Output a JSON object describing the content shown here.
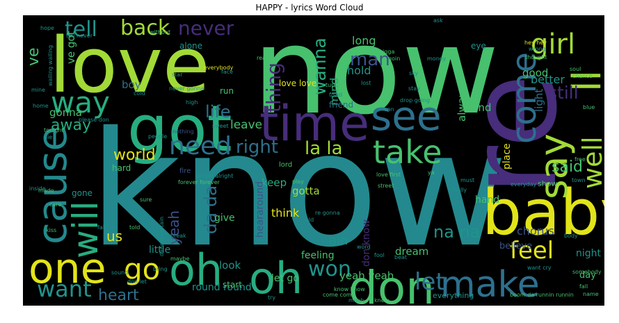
{
  "chart_data": {
    "type": "wordcloud",
    "title": "HAPPY - lyrics Word Cloud",
    "background": "#000000",
    "palette": {
      "yellow": "#e2e419",
      "lime": "#a2da37",
      "green": "#47c16e",
      "sea": "#27ad81",
      "teal": "#1f948c",
      "cyan": "#23898e",
      "blue": "#2d708e",
      "indigo": "#3b528b",
      "purple": "#472d7b",
      "violet": "#440154"
    },
    "words": [
      {
        "text": "know",
        "color": "cyan"
      },
      {
        "text": "now",
        "color": "green"
      },
      {
        "text": "re",
        "color": "purple"
      },
      {
        "text": "love",
        "color": "lime"
      },
      {
        "text": "got",
        "color": "sea"
      },
      {
        "text": "time",
        "color": "purple"
      },
      {
        "text": "baby",
        "color": "yellow"
      },
      {
        "text": "cause",
        "color": "cyan"
      },
      {
        "text": "one",
        "color": "yellow"
      },
      {
        "text": "oh",
        "color": "sea"
      },
      {
        "text": "oh",
        "color": "sea"
      },
      {
        "text": "don",
        "color": "green"
      },
      {
        "text": "see",
        "color": "blue"
      },
      {
        "text": "say",
        "color": "lime"
      },
      {
        "text": "ll",
        "color": "lime"
      },
      {
        "text": "will",
        "color": "sea"
      },
      {
        "text": "make",
        "color": "blue"
      },
      {
        "text": "come",
        "color": "blue"
      },
      {
        "text": "take",
        "color": "green"
      },
      {
        "text": "way",
        "color": "sea"
      },
      {
        "text": "girl",
        "color": "lime"
      },
      {
        "text": "need",
        "color": "blue"
      },
      {
        "text": "feel",
        "color": "yellow"
      },
      {
        "text": "well",
        "color": "lime"
      },
      {
        "text": "go",
        "color": "yellow"
      },
      {
        "text": "want",
        "color": "teal"
      },
      {
        "text": "won",
        "color": "teal"
      },
      {
        "text": "let",
        "color": "blue"
      },
      {
        "text": "tell",
        "color": "teal"
      },
      {
        "text": "back",
        "color": "lime"
      },
      {
        "text": "never",
        "color": "purple"
      },
      {
        "text": "man",
        "color": "indigo"
      },
      {
        "text": "thing",
        "color": "purple"
      },
      {
        "text": "wanna",
        "color": "sea"
      },
      {
        "text": "right",
        "color": "blue"
      },
      {
        "text": "la la",
        "color": "lime"
      },
      {
        "text": "da da",
        "color": "blue"
      },
      {
        "text": "na na",
        "color": "teal"
      },
      {
        "text": "life",
        "color": "blue"
      },
      {
        "text": "world",
        "color": "yellow"
      },
      {
        "text": "away",
        "color": "sea"
      },
      {
        "text": "heart",
        "color": "blue"
      },
      {
        "text": "still",
        "color": "purple"
      },
      {
        "text": "said",
        "color": "green"
      },
      {
        "text": "yeah",
        "color": "indigo"
      },
      {
        "text": "ve",
        "color": "green"
      },
      {
        "text": "ve got",
        "color": "green"
      },
      {
        "text": "gonna",
        "color": "green"
      },
      {
        "text": "boy",
        "color": "blue"
      },
      {
        "text": "hold",
        "color": "teal"
      },
      {
        "text": "long",
        "color": "green"
      },
      {
        "text": "mind",
        "color": "sea"
      },
      {
        "text": "love love",
        "color": "yellow"
      },
      {
        "text": "leave",
        "color": "green"
      },
      {
        "text": "better",
        "color": "teal"
      },
      {
        "text": "good",
        "color": "green"
      },
      {
        "text": "find",
        "color": "green"
      },
      {
        "text": "always",
        "color": "green"
      },
      {
        "text": "light",
        "color": "blue"
      },
      {
        "text": "place",
        "color": "yellow"
      },
      {
        "text": "chorus",
        "color": "indigo"
      },
      {
        "text": "keep",
        "color": "sea"
      },
      {
        "text": "gotta",
        "color": "lime"
      },
      {
        "text": "think",
        "color": "yellow"
      },
      {
        "text": "hand",
        "color": "green"
      },
      {
        "text": "heararound",
        "color": "indigo"
      },
      {
        "text": "ain",
        "color": "teal"
      },
      {
        "text": "dream",
        "color": "green"
      },
      {
        "text": "don know",
        "color": "purple"
      },
      {
        "text": "let go",
        "color": "green"
      },
      {
        "text": "yeah yeah",
        "color": "green"
      },
      {
        "text": "round round",
        "color": "teal"
      },
      {
        "text": "look",
        "color": "teal"
      },
      {
        "text": "us",
        "color": "yellow"
      },
      {
        "text": "give",
        "color": "green"
      },
      {
        "text": "little",
        "color": "teal"
      },
      {
        "text": "hard",
        "color": "green"
      },
      {
        "text": "gone",
        "color": "teal"
      },
      {
        "text": "night",
        "color": "teal"
      },
      {
        "text": "day",
        "color": "green"
      },
      {
        "text": "show",
        "color": "green"
      },
      {
        "text": "feeling",
        "color": "green"
      },
      {
        "text": "start",
        "color": "green"
      },
      {
        "text": "everything",
        "color": "teal"
      },
      {
        "text": "believe",
        "color": "indigo"
      },
      {
        "text": "alone",
        "color": "teal"
      },
      {
        "text": "eye",
        "color": "teal"
      },
      {
        "text": "run",
        "color": "green"
      },
      {
        "text": "friend",
        "color": "blue"
      },
      {
        "text": "lord",
        "color": "green"
      },
      {
        "text": "really",
        "color": "teal"
      },
      {
        "text": "fire",
        "color": "indigo"
      },
      {
        "text": "forever forever",
        "color": "green"
      },
      {
        "text": "people",
        "color": "teal"
      },
      {
        "text": "nothing",
        "color": "indigo"
      },
      {
        "text": "sweet",
        "color": "teal"
      },
      {
        "text": "tonight",
        "color": "green"
      },
      {
        "text": "die",
        "color": "teal"
      },
      {
        "text": "please don",
        "color": "teal"
      },
      {
        "text": "never gonna",
        "color": "teal"
      },
      {
        "text": "everybody",
        "color": "yellow"
      },
      {
        "text": "star",
        "color": "teal"
      },
      {
        "text": "real",
        "color": "green"
      },
      {
        "text": "lost",
        "color": "teal"
      },
      {
        "text": "turn",
        "color": "green"
      },
      {
        "text": "stay",
        "color": "teal"
      },
      {
        "text": "sky",
        "color": "teal"
      },
      {
        "text": "goin",
        "color": "green"
      },
      {
        "text": "thought",
        "color": "green"
      },
      {
        "text": "soul",
        "color": "green"
      },
      {
        "text": "chance",
        "color": "green"
      },
      {
        "text": "blue",
        "color": "green"
      },
      {
        "text": "town",
        "color": "teal"
      },
      {
        "text": "free",
        "color": "green"
      },
      {
        "text": "hey hey",
        "color": "yellow"
      },
      {
        "text": "fall",
        "color": "green"
      },
      {
        "text": "kiss",
        "color": "green"
      },
      {
        "text": "told",
        "color": "green"
      },
      {
        "text": "sure",
        "color": "green"
      },
      {
        "text": "break",
        "color": "teal"
      },
      {
        "text": "maybe",
        "color": "green"
      },
      {
        "text": "bring",
        "color": "teal"
      },
      {
        "text": "don let",
        "color": "teal"
      },
      {
        "text": "sound",
        "color": "teal"
      },
      {
        "text": "word",
        "color": "teal"
      },
      {
        "text": "beat",
        "color": "teal"
      },
      {
        "text": "fool",
        "color": "teal"
      },
      {
        "text": "must",
        "color": "teal"
      },
      {
        "text": "everyday",
        "color": "teal"
      },
      {
        "text": "want cry",
        "color": "teal"
      },
      {
        "text": "somebody",
        "color": "green"
      },
      {
        "text": "name",
        "color": "green"
      },
      {
        "text": "mine",
        "color": "teal"
      },
      {
        "text": "home",
        "color": "teal"
      },
      {
        "text": "made",
        "color": "green"
      },
      {
        "text": "care",
        "color": "green"
      },
      {
        "text": "hope",
        "color": "teal"
      },
      {
        "text": "high",
        "color": "teal"
      },
      {
        "text": "play",
        "color": "green"
      },
      {
        "text": "street",
        "color": "green"
      },
      {
        "text": "love first",
        "color": "green"
      },
      {
        "text": "re gonna",
        "color": "teal"
      },
      {
        "text": "dancin certain",
        "color": "teal"
      },
      {
        "text": "knew",
        "color": "green"
      },
      {
        "text": "much",
        "color": "teal"
      },
      {
        "text": "come come",
        "color": "green"
      },
      {
        "text": "know know",
        "color": "green"
      },
      {
        "text": "boom da runnin runnin",
        "color": "green"
      },
      {
        "text": "ya",
        "color": "green"
      },
      {
        "text": "try",
        "color": "teal"
      },
      {
        "text": "old",
        "color": "teal"
      },
      {
        "text": "mean",
        "color": "teal"
      },
      {
        "text": "face",
        "color": "teal"
      },
      {
        "text": "without",
        "color": "green"
      },
      {
        "text": "wailing wailing",
        "color": "teal"
      },
      {
        "text": "nigga",
        "color": "green"
      },
      {
        "text": "ask",
        "color": "teal"
      },
      {
        "text": "wrong",
        "color": "teal"
      },
      {
        "text": "money",
        "color": "teal"
      },
      {
        "text": "cold",
        "color": "teal"
      },
      {
        "text": "fall",
        "color": "teal"
      },
      {
        "text": "tell never",
        "color": "teal"
      },
      {
        "text": "alright alright",
        "color": "teal"
      },
      {
        "text": "inside",
        "color": "teal"
      },
      {
        "text": "used",
        "color": "teal"
      },
      {
        "text": "drop going",
        "color": "teal"
      },
      {
        "text": "body",
        "color": "teal"
      }
    ]
  }
}
